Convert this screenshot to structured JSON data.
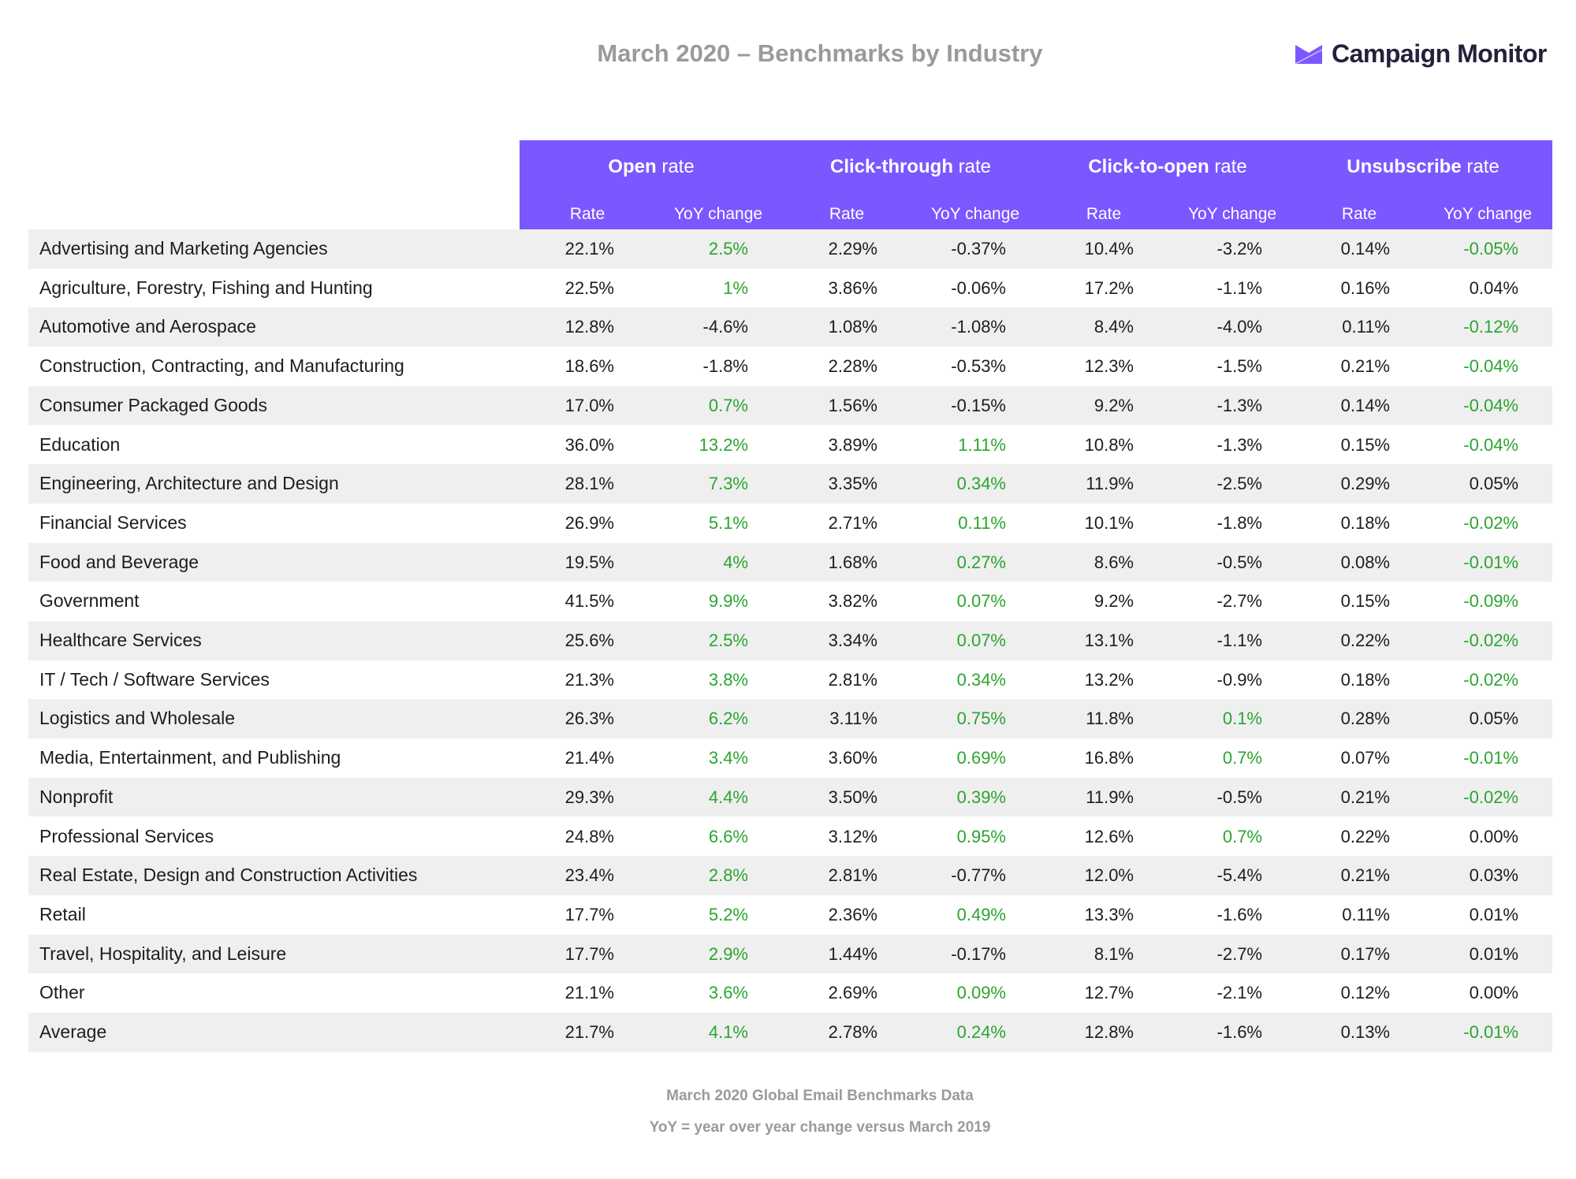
{
  "title": "March 2020 – Benchmarks by Industry",
  "logo": {
    "text": "Campaign Monitor",
    "icon": "envelope-logo-icon",
    "color": "#7b57ff"
  },
  "colors": {
    "header": "#7b57ff",
    "positive": "#2aa52f",
    "row_alt": "#efefef"
  },
  "groups": [
    {
      "bold": "Open",
      "rest": " rate"
    },
    {
      "bold": "Click-through",
      "rest": " rate"
    },
    {
      "bold": "Click-to-open",
      "rest": " rate"
    },
    {
      "bold": "Unsubscribe",
      "rest": " rate"
    }
  ],
  "subheaders": [
    "Rate",
    "YoY change",
    "Rate",
    "YoY change",
    "Rate",
    "YoY change",
    "Rate",
    "YoY change"
  ],
  "rows": [
    {
      "label": "Advertising and Marketing Agencies",
      "values": [
        "22.1%",
        "2.5%",
        "2.29%",
        "-0.37%",
        "10.4%",
        "-3.2%",
        "0.14%",
        "-0.05%"
      ],
      "green": [
        1,
        7
      ]
    },
    {
      "label": "Agriculture, Forestry, Fishing and Hunting",
      "values": [
        "22.5%",
        "1%",
        "3.86%",
        "-0.06%",
        "17.2%",
        "-1.1%",
        "0.16%",
        "0.04%"
      ],
      "green": [
        1
      ]
    },
    {
      "label": "Automotive and Aerospace",
      "values": [
        "12.8%",
        "-4.6%",
        "1.08%",
        "-1.08%",
        "8.4%",
        "-4.0%",
        "0.11%",
        "-0.12%"
      ],
      "green": [
        7
      ]
    },
    {
      "label": "Construction, Contracting, and Manufacturing",
      "values": [
        "18.6%",
        "-1.8%",
        "2.28%",
        "-0.53%",
        "12.3%",
        "-1.5%",
        "0.21%",
        "-0.04%"
      ],
      "green": [
        7
      ]
    },
    {
      "label": "Consumer Packaged Goods",
      "values": [
        "17.0%",
        "0.7%",
        "1.56%",
        "-0.15%",
        "9.2%",
        "-1.3%",
        "0.14%",
        "-0.04%"
      ],
      "green": [
        1,
        7
      ]
    },
    {
      "label": "Education",
      "values": [
        "36.0%",
        "13.2%",
        "3.89%",
        "1.11%",
        "10.8%",
        "-1.3%",
        "0.15%",
        "-0.04%"
      ],
      "green": [
        1,
        3,
        7
      ]
    },
    {
      "label": "Engineering, Architecture and Design",
      "values": [
        "28.1%",
        "7.3%",
        "3.35%",
        "0.34%",
        "11.9%",
        "-2.5%",
        "0.29%",
        "0.05%"
      ],
      "green": [
        1,
        3
      ]
    },
    {
      "label": "Financial Services",
      "values": [
        "26.9%",
        "5.1%",
        "2.71%",
        "0.11%",
        "10.1%",
        "-1.8%",
        "0.18%",
        "-0.02%"
      ],
      "green": [
        1,
        3,
        7
      ]
    },
    {
      "label": "Food and Beverage",
      "values": [
        "19.5%",
        "4%",
        "1.68%",
        "0.27%",
        "8.6%",
        "-0.5%",
        "0.08%",
        "-0.01%"
      ],
      "green": [
        1,
        3,
        7
      ]
    },
    {
      "label": "Government",
      "values": [
        "41.5%",
        "9.9%",
        "3.82%",
        "0.07%",
        "9.2%",
        "-2.7%",
        "0.15%",
        "-0.09%"
      ],
      "green": [
        1,
        3,
        7
      ]
    },
    {
      "label": "Healthcare Services",
      "values": [
        "25.6%",
        "2.5%",
        "3.34%",
        "0.07%",
        "13.1%",
        "-1.1%",
        "0.22%",
        "-0.02%"
      ],
      "green": [
        1,
        3,
        7
      ]
    },
    {
      "label": "IT / Tech / Software Services",
      "values": [
        "21.3%",
        "3.8%",
        "2.81%",
        "0.34%",
        "13.2%",
        "-0.9%",
        "0.18%",
        "-0.02%"
      ],
      "green": [
        1,
        3,
        7
      ]
    },
    {
      "label": "Logistics and Wholesale",
      "values": [
        "26.3%",
        "6.2%",
        "3.11%",
        "0.75%",
        "11.8%",
        "0.1%",
        "0.28%",
        "0.05%"
      ],
      "green": [
        1,
        3,
        5
      ]
    },
    {
      "label": "Media, Entertainment, and Publishing",
      "values": [
        "21.4%",
        "3.4%",
        "3.60%",
        "0.69%",
        "16.8%",
        "0.7%",
        "0.07%",
        "-0.01%"
      ],
      "green": [
        1,
        3,
        5,
        7
      ]
    },
    {
      "label": "Nonprofit",
      "values": [
        "29.3%",
        "4.4%",
        "3.50%",
        "0.39%",
        "11.9%",
        "-0.5%",
        "0.21%",
        "-0.02%"
      ],
      "green": [
        1,
        3,
        7
      ]
    },
    {
      "label": "Professional Services",
      "values": [
        "24.8%",
        "6.6%",
        "3.12%",
        "0.95%",
        "12.6%",
        "0.7%",
        "0.22%",
        "0.00%"
      ],
      "green": [
        1,
        3,
        5
      ]
    },
    {
      "label": "Real Estate, Design and Construction Activities",
      "values": [
        "23.4%",
        "2.8%",
        "2.81%",
        "-0.77%",
        "12.0%",
        "-5.4%",
        "0.21%",
        "0.03%"
      ],
      "green": [
        1
      ]
    },
    {
      "label": "Retail",
      "values": [
        "17.7%",
        "5.2%",
        "2.36%",
        "0.49%",
        "13.3%",
        "-1.6%",
        "0.11%",
        "0.01%"
      ],
      "green": [
        1,
        3
      ]
    },
    {
      "label": "Travel, Hospitality, and Leisure",
      "values": [
        "17.7%",
        "2.9%",
        "1.44%",
        "-0.17%",
        "8.1%",
        "-2.7%",
        "0.17%",
        "0.01%"
      ],
      "green": [
        1
      ]
    },
    {
      "label": "Other",
      "values": [
        "21.1%",
        "3.6%",
        "2.69%",
        "0.09%",
        "12.7%",
        "-2.1%",
        "0.12%",
        "0.00%"
      ],
      "green": [
        1,
        3
      ]
    },
    {
      "label": "Average",
      "values": [
        "21.7%",
        "4.1%",
        "2.78%",
        "0.24%",
        "12.8%",
        "-1.6%",
        "0.13%",
        "-0.01%"
      ],
      "green": [
        1,
        3,
        7
      ]
    }
  ],
  "footer": {
    "line1": "March 2020 Global Email Benchmarks Data",
    "line2": "YoY = year over year change versus March 2019"
  }
}
